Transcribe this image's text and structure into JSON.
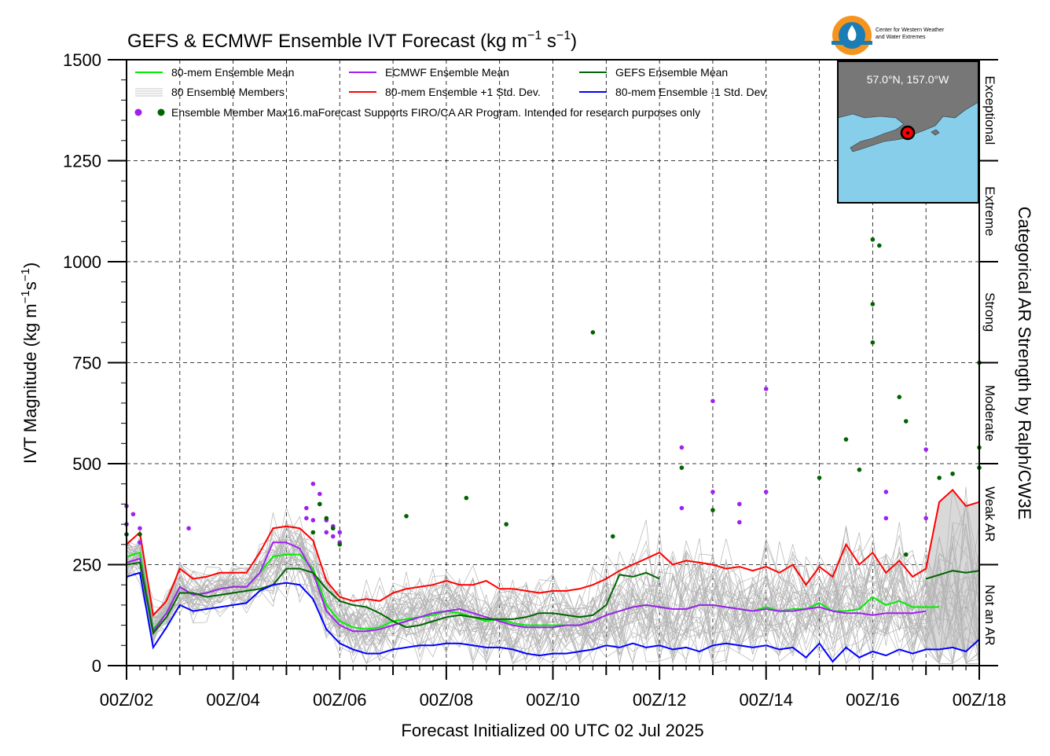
{
  "title": "GEFS & ECMWF Ensemble IVT Forecast (kg m",
  "title_sup1": "−1",
  "title_mid": " s",
  "title_sup2": "−1",
  "title_end": ")",
  "logo": {
    "line1": "Center for Western Weather",
    "line2": "and Water Extremes"
  },
  "inset": {
    "location": "57.0°N, 157.0°W",
    "colors": {
      "ocean": "#87ceeb",
      "land": "#777777",
      "point": "#ff0000"
    }
  },
  "legend": {
    "mean80": "80-mem Ensemble Mean",
    "ecmwf_mean": "ECMWF Ensemble Mean",
    "gefs_mean": "GEFS Ensemble Mean",
    "members": "80 Ensemble Members",
    "plus1": "80-mem Ensemble +1 Std. Dev.",
    "minus1": "80-mem Ensemble -1 Std. Dev.",
    "max_label": "Ensemble Member Max",
    "disclaimer": "16.maForecast Supports FIRO/CA AR Program. Intended for research purposes only"
  },
  "categories": [
    "Not an AR",
    "Weak AR",
    "Moderate",
    "Strong",
    "Extreme",
    "Exceptional"
  ],
  "right_axis_label": "Categorical AR Strength by Ralph/CW3E",
  "chart_data": {
    "type": "line",
    "title": "GEFS & ECMWF Ensemble IVT Forecast (kg m−1 s−1)",
    "xlabel": "Forecast Initialized 00 UTC 02 Jul 2025",
    "ylabel": "IVT Magnitude (kg m−1s−1)",
    "xlim": [
      0,
      384
    ],
    "ylim": [
      0,
      1500
    ],
    "x_unit": "hours since 00Z/02",
    "x_ticks": [
      0,
      48,
      96,
      144,
      192,
      240,
      288,
      336,
      384
    ],
    "x_tick_labels": [
      "00Z/02",
      "00Z/04",
      "00Z/06",
      "00Z/08",
      "00Z/10",
      "00Z/12",
      "00Z/14",
      "00Z/16",
      "00Z/18"
    ],
    "y_ticks": [
      0,
      250,
      500,
      750,
      1000,
      1250,
      1500
    ],
    "y_tick_labels": [
      "0",
      "250",
      "500",
      "750",
      "1000",
      "1250",
      "1500"
    ],
    "grid": true,
    "series": [
      {
        "name": "80-mem Ensemble Mean",
        "color": "#00ee00",
        "x": [
          0,
          6,
          12,
          18,
          24,
          30,
          36,
          42,
          48,
          54,
          60,
          66,
          72,
          78,
          84,
          90,
          96,
          102,
          108,
          114,
          120,
          126,
          132,
          138,
          144,
          150,
          156,
          162,
          168,
          174,
          180,
          186,
          192,
          198,
          204,
          210,
          216,
          222,
          228,
          234,
          240,
          246,
          252,
          258,
          264,
          270,
          276,
          282,
          288,
          294,
          300,
          306,
          312,
          318,
          324,
          330,
          336,
          342,
          348,
          354,
          360,
          366
        ],
        "y": [
          270,
          280,
          90,
          130,
          195,
          175,
          180,
          190,
          195,
          195,
          230,
          270,
          275,
          275,
          240,
          150,
          110,
          95,
          90,
          95,
          110,
          115,
          120,
          125,
          135,
          130,
          120,
          110,
          115,
          105,
          100,
          100,
          100,
          100,
          100,
          110,
          125,
          135,
          145,
          150,
          145,
          140,
          140,
          150,
          150,
          145,
          140,
          135,
          145,
          135,
          140,
          140,
          155,
          135,
          135,
          140,
          170,
          150,
          160,
          145,
          145,
          145
        ]
      },
      {
        "name": "ECMWF Ensemble Mean",
        "color": "#a020f0",
        "x": [
          0,
          6,
          12,
          18,
          24,
          30,
          36,
          42,
          48,
          54,
          60,
          66,
          72,
          78,
          84,
          90,
          96,
          102,
          108,
          114,
          120,
          126,
          132,
          138,
          144,
          150,
          156,
          162,
          168,
          174,
          180,
          186,
          192,
          198,
          204,
          210,
          216,
          222,
          228,
          234,
          240,
          246,
          252,
          258,
          264,
          270,
          276,
          282,
          288,
          294,
          300,
          306,
          312,
          318,
          324,
          330,
          336,
          342,
          348,
          354,
          360
        ],
        "y": [
          255,
          265,
          85,
          130,
          195,
          175,
          180,
          190,
          195,
          195,
          230,
          305,
          305,
          290,
          230,
          135,
          100,
          85,
          85,
          90,
          100,
          110,
          120,
          130,
          135,
          140,
          130,
          120,
          110,
          100,
          95,
          95,
          95,
          100,
          100,
          110,
          125,
          135,
          145,
          150,
          145,
          140,
          140,
          150,
          150,
          145,
          140,
          135,
          140,
          135,
          135,
          140,
          145,
          135,
          130,
          130,
          125,
          130,
          130,
          130,
          135
        ]
      },
      {
        "name": "GEFS Ensemble Mean",
        "color": "#006400",
        "x": [
          0,
          6,
          12,
          18,
          24,
          30,
          36,
          42,
          48,
          54,
          60,
          66,
          72,
          78,
          84,
          90,
          96,
          102,
          108,
          114,
          120,
          126,
          132,
          138,
          144,
          150,
          156,
          162,
          168,
          174,
          180,
          186,
          192,
          198,
          204,
          210,
          216,
          222,
          228,
          234,
          240,
          360,
          366,
          372,
          378,
          384
        ],
        "y": [
          250,
          255,
          80,
          120,
          180,
          180,
          170,
          175,
          180,
          185,
          190,
          200,
          240,
          240,
          230,
          190,
          160,
          150,
          145,
          130,
          110,
          95,
          100,
          110,
          120,
          125,
          120,
          115,
          115,
          115,
          120,
          130,
          130,
          125,
          120,
          125,
          150,
          225,
          220,
          230,
          215,
          215,
          225,
          235,
          230,
          235
        ]
      },
      {
        "name": "80-mem Ensemble +1 Std. Dev.",
        "color": "#ff0000",
        "x": [
          0,
          6,
          12,
          18,
          24,
          30,
          36,
          42,
          48,
          54,
          60,
          66,
          72,
          78,
          84,
          90,
          96,
          102,
          108,
          114,
          120,
          126,
          132,
          138,
          144,
          150,
          156,
          162,
          168,
          174,
          180,
          186,
          192,
          198,
          204,
          210,
          216,
          222,
          228,
          234,
          240,
          246,
          252,
          258,
          264,
          270,
          276,
          282,
          288,
          294,
          300,
          306,
          312,
          318,
          324,
          330,
          336,
          342,
          348,
          354,
          360,
          366,
          372,
          378,
          384
        ],
        "y": [
          300,
          330,
          125,
          160,
          240,
          215,
          220,
          230,
          230,
          230,
          280,
          340,
          345,
          340,
          310,
          210,
          170,
          160,
          165,
          160,
          180,
          190,
          195,
          200,
          210,
          200,
          200,
          210,
          190,
          190,
          185,
          180,
          185,
          185,
          190,
          200,
          215,
          235,
          250,
          265,
          280,
          250,
          260,
          255,
          250,
          240,
          245,
          235,
          245,
          230,
          250,
          200,
          245,
          220,
          300,
          250,
          280,
          230,
          260,
          220,
          240,
          405,
          435,
          395,
          405
        ]
      },
      {
        "name": "80-mem Ensemble -1 Std. Dev.",
        "color": "#0000ff",
        "x": [
          0,
          6,
          12,
          18,
          24,
          30,
          36,
          42,
          48,
          54,
          60,
          66,
          72,
          78,
          84,
          90,
          96,
          102,
          108,
          114,
          120,
          126,
          132,
          138,
          144,
          150,
          156,
          162,
          168,
          174,
          180,
          186,
          192,
          198,
          204,
          210,
          216,
          222,
          228,
          234,
          240,
          246,
          252,
          258,
          264,
          270,
          276,
          282,
          288,
          294,
          300,
          306,
          312,
          318,
          324,
          330,
          336,
          342,
          348,
          354,
          360,
          366,
          372,
          378,
          384
        ],
        "y": [
          220,
          230,
          45,
          95,
          150,
          135,
          140,
          145,
          150,
          155,
          185,
          200,
          205,
          200,
          165,
          90,
          55,
          40,
          30,
          30,
          40,
          45,
          50,
          50,
          55,
          55,
          50,
          45,
          45,
          40,
          30,
          25,
          30,
          30,
          35,
          40,
          50,
          45,
          55,
          45,
          50,
          40,
          45,
          35,
          50,
          55,
          50,
          45,
          50,
          40,
          45,
          20,
          55,
          10,
          45,
          20,
          35,
          25,
          40,
          30,
          40,
          40,
          45,
          35,
          65
        ]
      }
    ],
    "ecmwf_member_max": {
      "name": "Ensemble Member Max",
      "color": "#a020f0",
      "x": [
        0,
        0,
        3,
        6,
        6,
        28,
        81,
        81,
        84,
        84,
        87,
        87,
        90,
        90,
        93,
        93,
        96,
        96,
        250,
        250,
        264,
        264,
        276,
        276,
        288,
        288,
        342,
        342,
        360,
        360
      ],
      "y": [
        395,
        350,
        375,
        340,
        305,
        340,
        390,
        365,
        450,
        360,
        425,
        400,
        360,
        330,
        345,
        320,
        330,
        305,
        540,
        390,
        655,
        430,
        355,
        400,
        685,
        430,
        430,
        365,
        535,
        365
      ]
    },
    "gefs_member_max": {
      "name": "Ensemble Member Max",
      "color": "#006400",
      "x": [
        0,
        6,
        84,
        87,
        90,
        93,
        96,
        126,
        153,
        171,
        210,
        219,
        250,
        264,
        312,
        324,
        330,
        336,
        336,
        336,
        339,
        348,
        351,
        351,
        366,
        372,
        384,
        384,
        384
      ],
      "y": [
        325,
        325,
        330,
        400,
        365,
        340,
        300,
        370,
        415,
        350,
        825,
        320,
        490,
        385,
        465,
        560,
        485,
        800,
        1055,
        895,
        1040,
        665,
        605,
        275,
        465,
        475,
        750,
        540,
        490
      ]
    }
  }
}
